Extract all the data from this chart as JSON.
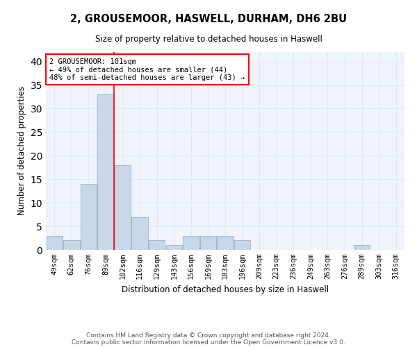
{
  "title_line1": "2, GROUSEMOOR, HASWELL, DURHAM, DH6 2BU",
  "title_line2": "Size of property relative to detached houses in Haswell",
  "xlabel": "Distribution of detached houses by size in Haswell",
  "ylabel": "Number of detached properties",
  "categories": [
    "49sqm",
    "62sqm",
    "76sqm",
    "89sqm",
    "102sqm",
    "116sqm",
    "129sqm",
    "143sqm",
    "156sqm",
    "169sqm",
    "183sqm",
    "196sqm",
    "209sqm",
    "223sqm",
    "236sqm",
    "249sqm",
    "263sqm",
    "276sqm",
    "289sqm",
    "303sqm",
    "316sqm"
  ],
  "values": [
    3,
    2,
    14,
    33,
    18,
    7,
    2,
    1,
    3,
    3,
    3,
    2,
    0,
    0,
    0,
    0,
    0,
    0,
    1,
    0,
    0
  ],
  "bar_color": "#c8d8e8",
  "bar_edgecolor": "#a0b8cc",
  "annotation_text": "2 GROUSEMOOR: 101sqm\n← 49% of detached houses are smaller (44)\n48% of semi-detached houses are larger (43) →",
  "annotation_box_color": "white",
  "annotation_box_edgecolor": "red",
  "vline_color": "red",
  "vline_x": 3.5,
  "ylim": [
    0,
    42
  ],
  "yticks": [
    0,
    5,
    10,
    15,
    20,
    25,
    30,
    35,
    40
  ],
  "footer_line1": "Contains HM Land Registry data © Crown copyright and database right 2024.",
  "footer_line2": "Contains public sector information licensed under the Open Government Licence v3.0.",
  "grid_color": "#dde8f0",
  "bg_color": "#eef4fa"
}
